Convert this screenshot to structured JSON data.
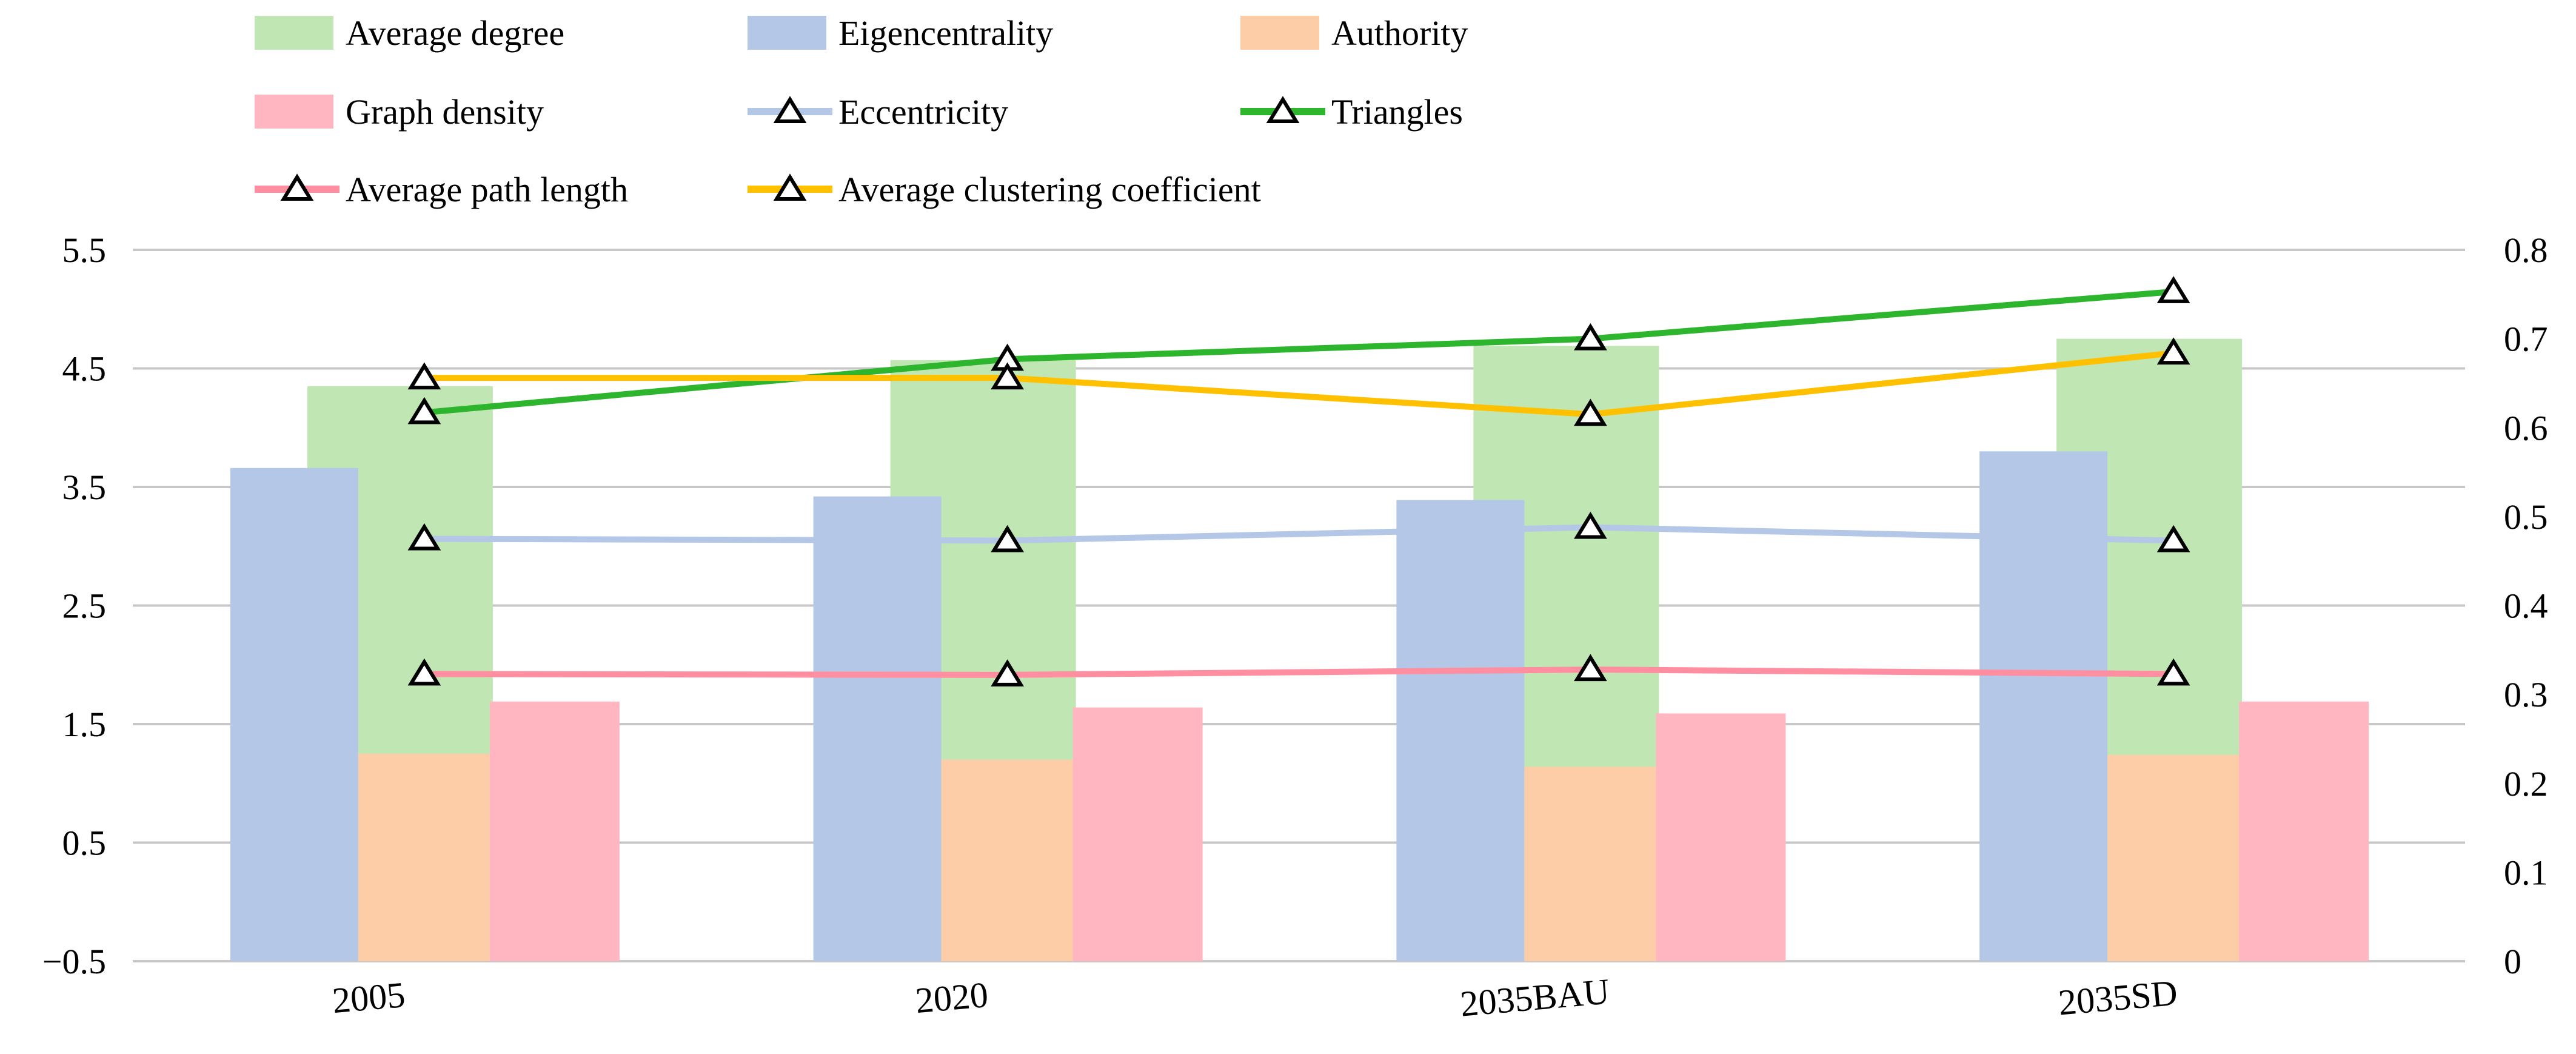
{
  "chart_data": {
    "type": "bar",
    "categories": [
      "2005",
      "2020",
      "2035BAU",
      "2035SD"
    ],
    "left_axis": {
      "range": [
        -0.5,
        5.5
      ],
      "ticks": [
        "5.5",
        "4.5",
        "3.5",
        "2.5",
        "1.5",
        "0.5",
        "−0.5"
      ]
    },
    "right_axis": {
      "range": [
        0,
        0.8
      ],
      "ticks": [
        "0.8",
        "0.7",
        "0.6",
        "0.5",
        "0.4",
        "0.3",
        "0.2",
        "0.1",
        "0"
      ]
    },
    "grid": true,
    "legend_position": "top",
    "bar_series": [
      {
        "name": "Average degree",
        "color": "#c0e6b4",
        "axis": "left",
        "values": [
          4.35,
          4.57,
          4.69,
          4.75
        ]
      },
      {
        "name": "Eigencentrality",
        "color": "#b4c7e7",
        "axis": "left",
        "values": [
          3.66,
          3.42,
          3.39,
          3.8
        ]
      },
      {
        "name": "Authority",
        "color": "#fdcda8",
        "axis": "left",
        "values": [
          1.25,
          1.2,
          1.14,
          1.24
        ]
      },
      {
        "name": "Graph density",
        "color": "#ffb6c1",
        "axis": "left",
        "values": [
          1.69,
          1.64,
          1.59,
          1.69
        ]
      }
    ],
    "line_series": [
      {
        "name": "Eccentricity",
        "color": "#b4c7e7",
        "axis": "right",
        "marker": "triangle",
        "values": [
          0.475,
          0.473,
          0.488,
          0.473
        ]
      },
      {
        "name": "Triangles",
        "color": "#2db52d",
        "axis": "right",
        "marker": "triangle",
        "values": [
          0.617,
          0.677,
          0.7,
          0.753
        ]
      },
      {
        "name": "Average path length",
        "color": "#ff8fa0",
        "axis": "right",
        "marker": "triangle",
        "values": [
          0.323,
          0.322,
          0.328,
          0.323
        ]
      },
      {
        "name": "Average clustering coefficient",
        "color": "#ffc000",
        "axis": "right",
        "marker": "triangle",
        "values": [
          0.656,
          0.656,
          0.615,
          0.684
        ]
      }
    ],
    "legend_order": [
      "Average degree",
      "Eigencentrality",
      "Authority",
      "Graph density",
      "Eccentricity",
      "Triangles",
      "Average path length",
      "Average clustering coefficient"
    ]
  }
}
